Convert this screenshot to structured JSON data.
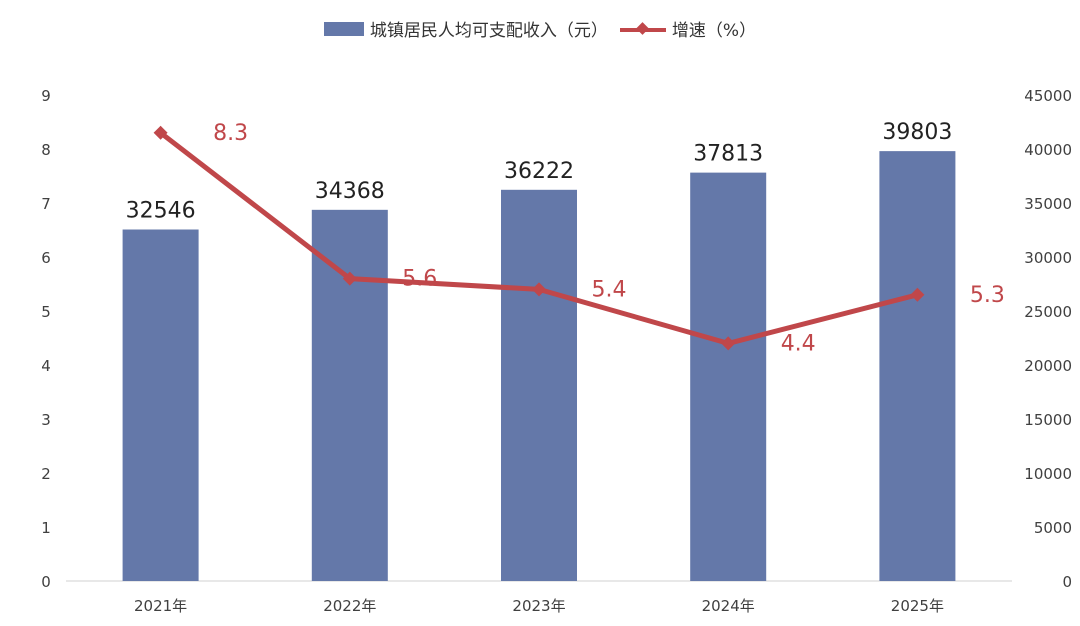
{
  "legend": {
    "bar_label": "城镇居民人均可支配收入（元）",
    "line_label": "增速（%）"
  },
  "colors": {
    "bar": "#6478a9",
    "line": "#c0474a",
    "axis_text": "#404040",
    "bar_label_text": "#222222"
  },
  "chart_data": {
    "type": "bar",
    "categories": [
      "2021年",
      "2022年",
      "2023年",
      "2024年",
      "2025年"
    ],
    "series": [
      {
        "name": "城镇居民人均可支配收入（元）",
        "type": "bar",
        "axis": "right",
        "values": [
          32546,
          34368,
          36222,
          37813,
          39803
        ]
      },
      {
        "name": "增速（%）",
        "type": "line",
        "axis": "left",
        "values": [
          8.3,
          5.6,
          5.4,
          4.4,
          5.3
        ]
      }
    ],
    "left_axis": {
      "ylim": [
        0,
        9
      ],
      "ticks": [
        "0",
        "1",
        "2",
        "3",
        "4",
        "5",
        "6",
        "7",
        "8",
        "9"
      ]
    },
    "right_axis": {
      "ylim": [
        0,
        45000
      ],
      "ticks": [
        "0",
        "5000",
        "10000",
        "15000",
        "20000",
        "25000",
        "30000",
        "35000",
        "40000",
        "45000"
      ]
    },
    "grid": false,
    "legend_position": "top-center"
  }
}
